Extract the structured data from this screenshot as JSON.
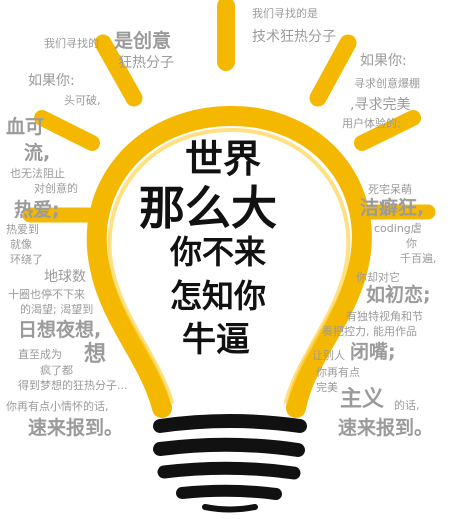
{
  "colors": {
    "bulb_yellow": "#f5b800",
    "ink": "#111111",
    "gray_text": "#9b9b9b",
    "background": "#ffffff"
  },
  "headline": {
    "line1": "世界",
    "line2": "那么大",
    "line3": "你不来",
    "line4": "怎知你",
    "line5": "牛逼"
  },
  "surrounding_text": {
    "t01": "我们寻找的是",
    "t02": "我们寻找的",
    "t03": "是创意",
    "t04": "技术狂热分子",
    "t05": "狂热分子",
    "t06": "如果你:",
    "t07": "如果你:",
    "t08": "头可破,",
    "t09": "寻求创意爆棚",
    "t10": ",寻求完美",
    "t11": "用户体验的;",
    "t12": "血可",
    "t13": "流,",
    "t14": "也无法阻止",
    "t15": "对创意的",
    "t16": "热爱;",
    "t17": "热爱到",
    "t18": "就像",
    "t19": "环绕了",
    "t20": "地球数",
    "t21": "十圈也停不下来",
    "t22": "的渴望; 渴望到",
    "t23": "日想夜想,",
    "t24": "直至成为",
    "t25": "想",
    "t26": "疯了都",
    "t27": "得到梦想的狂热分子...",
    "t28": "你再有点小情怀的话,",
    "t29": "速来报到。",
    "t30": "死宅呆萌",
    "t31": "洁癖狂,",
    "t32": "coding虐",
    "t33": "你",
    "t34": "千百遍,",
    "t35": "你却对它",
    "t36": "如初恋;",
    "t37": "有独特视角和节",
    "t38": "奏把控力, 能用作品",
    "t39": "让别人",
    "t40": "闭嘴;",
    "t41": "你再有点",
    "t42": "完美",
    "t43": "主义",
    "t44": "的话,",
    "t45": "速来报到。"
  }
}
